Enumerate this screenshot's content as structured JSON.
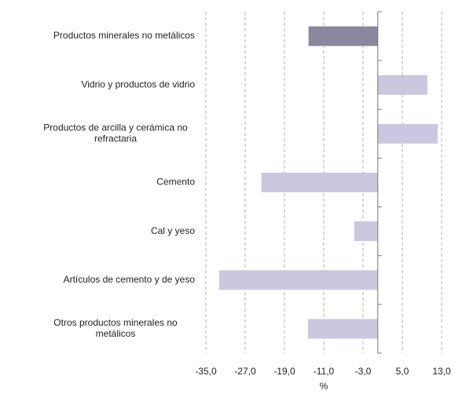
{
  "chart_data": {
    "type": "barh",
    "categories": [
      [
        "Productos minerales no metálicos"
      ],
      [
        "Vidrio y productos de vidrio"
      ],
      [
        "Productos de arcilla y cerámica no",
        "refractaria"
      ],
      [
        "Cemento"
      ],
      [
        "Cal y yeso"
      ],
      [
        "Artículos de cemento y de yeso"
      ],
      [
        "Otros productos minerales no",
        "metálicos"
      ]
    ],
    "values": [
      -14.1,
      10.1,
      12.2,
      -23.7,
      -4.8,
      -32.3,
      -14.2
    ],
    "colors": [
      "#8a879f",
      "#c9c8de",
      "#c9c8de",
      "#c9c8de",
      "#c9c8de",
      "#c9c8de",
      "#c9c8de"
    ],
    "xlabel": "%",
    "xlim": [
      -35,
      13
    ],
    "xticks": [
      {
        "value": -35,
        "label": "-35,0"
      },
      {
        "value": -27,
        "label": "-27,0"
      },
      {
        "value": -19,
        "label": "-19,0"
      },
      {
        "value": -11,
        "label": "-11,0"
      },
      {
        "value": -3,
        "label": "-3,0"
      },
      {
        "value": 5,
        "label": "5,0"
      },
      {
        "value": 13,
        "label": "13,0"
      }
    ],
    "grid": true
  }
}
